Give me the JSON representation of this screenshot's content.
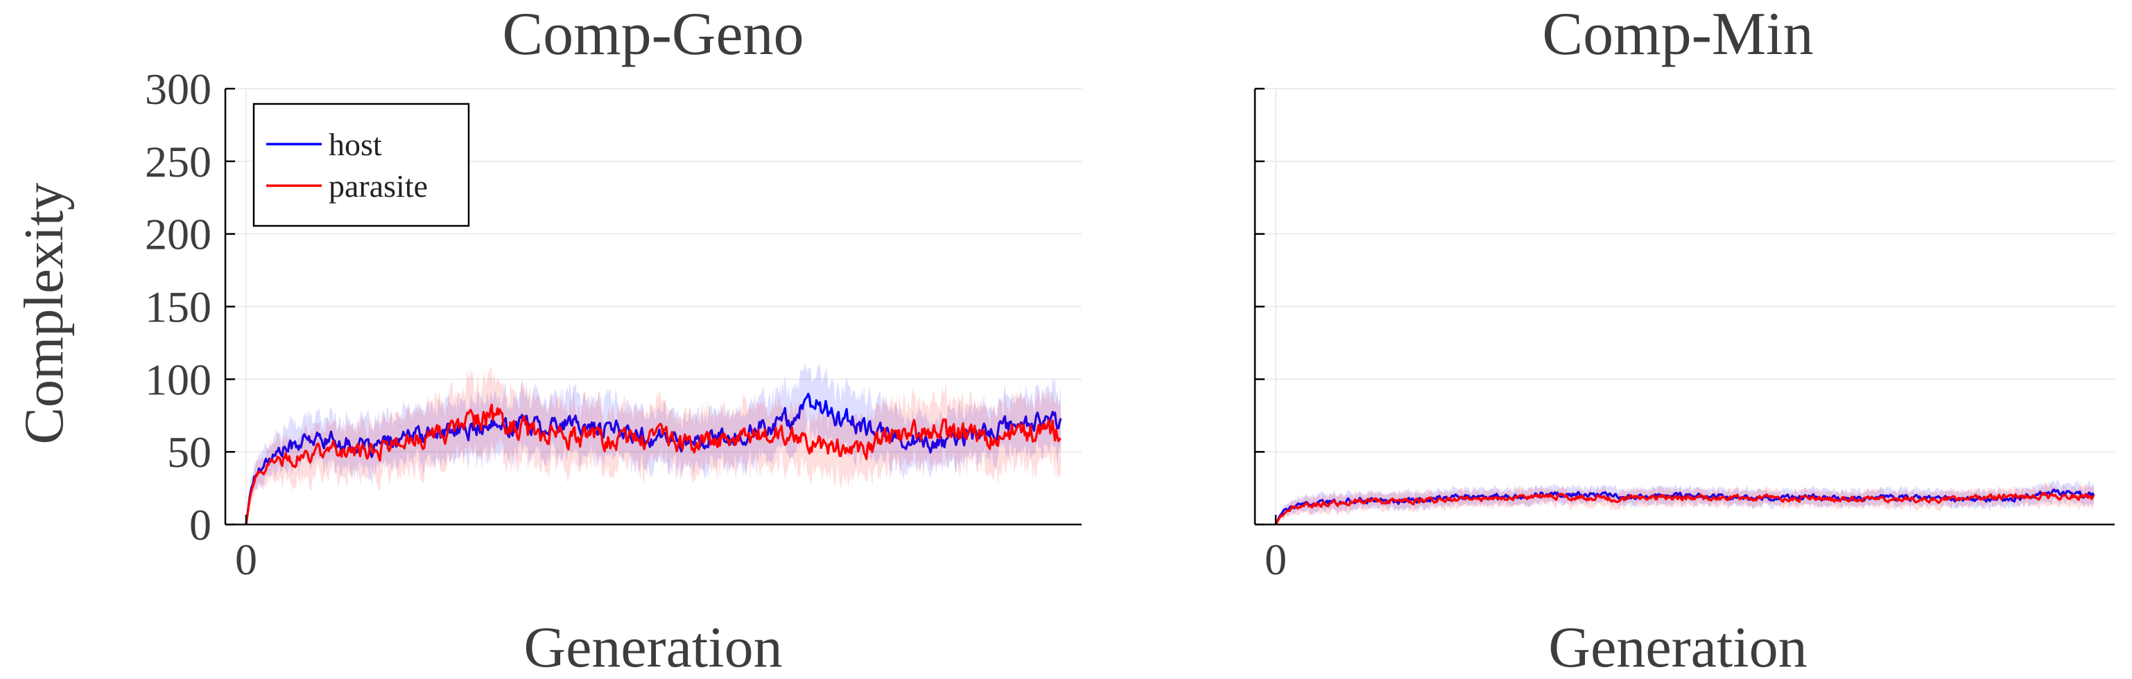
{
  "chart_data": [
    {
      "type": "line",
      "title": "Comp-Geno",
      "xlabel": "Generation",
      "ylabel": "Complexity",
      "xlim": [
        0,
        1000
      ],
      "ylim": [
        0,
        300
      ],
      "yticks": [
        0,
        50,
        100,
        150,
        200,
        250,
        300
      ],
      "xticks": [
        0
      ],
      "grid": true,
      "legend": "top-left",
      "series": [
        {
          "name": "host",
          "color": "#0000ff",
          "x": [
            0,
            5,
            10,
            20,
            40,
            60,
            80,
            100,
            150,
            200,
            250,
            300,
            350,
            400,
            450,
            500,
            550,
            600,
            650,
            700,
            750,
            800,
            850,
            900,
            950,
            1000
          ],
          "y": [
            0,
            22,
            32,
            42,
            50,
            55,
            58,
            59,
            52,
            60,
            64,
            66,
            70,
            68,
            66,
            60,
            57,
            60,
            70,
            82,
            68,
            60,
            55,
            62,
            70,
            72
          ],
          "band": [
            0,
            6,
            8,
            10,
            12,
            14,
            14,
            15,
            15,
            16,
            17,
            18,
            18,
            18,
            17,
            17,
            16,
            17,
            18,
            20,
            18,
            17,
            16,
            16,
            17,
            18
          ]
        },
        {
          "name": "parasite",
          "color": "#ff0000",
          "x": [
            0,
            5,
            10,
            20,
            40,
            60,
            80,
            100,
            150,
            200,
            250,
            300,
            350,
            400,
            450,
            500,
            550,
            600,
            650,
            700,
            750,
            800,
            850,
            900,
            950,
            1000
          ],
          "y": [
            0,
            20,
            30,
            38,
            44,
            46,
            48,
            50,
            50,
            58,
            64,
            75,
            62,
            60,
            58,
            60,
            55,
            60,
            62,
            56,
            52,
            60,
            65,
            60,
            63,
            65
          ],
          "band": [
            0,
            6,
            8,
            10,
            12,
            14,
            15,
            16,
            16,
            18,
            20,
            22,
            20,
            19,
            18,
            18,
            17,
            18,
            19,
            18,
            18,
            19,
            20,
            19,
            20,
            22
          ]
        }
      ]
    },
    {
      "type": "line",
      "title": "Comp-Min",
      "xlabel": "Generation",
      "ylabel": "",
      "xlim": [
        0,
        1000
      ],
      "ylim": [
        0,
        300
      ],
      "yticks": [
        0,
        50,
        100,
        150,
        200,
        250,
        300
      ],
      "xticks": [
        0
      ],
      "grid": true,
      "legend": "",
      "series": [
        {
          "name": "host",
          "color": "#0000ff",
          "x": [
            0,
            5,
            10,
            20,
            40,
            60,
            80,
            100,
            150,
            200,
            250,
            300,
            350,
            400,
            450,
            500,
            550,
            600,
            650,
            700,
            750,
            800,
            850,
            900,
            950,
            1000
          ],
          "y": [
            0,
            6,
            9,
            12,
            14,
            15,
            16,
            17,
            16,
            18,
            19,
            20,
            21,
            20,
            19,
            20,
            19,
            18,
            19,
            18,
            19,
            18,
            17,
            18,
            22,
            20
          ],
          "band": [
            0,
            2,
            3,
            4,
            5,
            5,
            5,
            5,
            5,
            5,
            5,
            5,
            5,
            5,
            5,
            5,
            5,
            5,
            5,
            5,
            5,
            5,
            5,
            5,
            6,
            6
          ]
        },
        {
          "name": "parasite",
          "color": "#ff0000",
          "x": [
            0,
            5,
            10,
            20,
            40,
            60,
            80,
            100,
            150,
            200,
            250,
            300,
            350,
            400,
            450,
            500,
            550,
            600,
            650,
            700,
            750,
            800,
            850,
            900,
            950,
            1000
          ],
          "y": [
            0,
            5,
            8,
            11,
            13,
            14,
            15,
            16,
            16,
            17,
            18,
            19,
            19,
            18,
            18,
            19,
            18,
            18,
            18,
            17,
            18,
            17,
            18,
            19,
            20,
            19
          ],
          "band": [
            0,
            2,
            3,
            4,
            5,
            5,
            5,
            5,
            5,
            5,
            5,
            5,
            5,
            5,
            5,
            5,
            5,
            5,
            5,
            5,
            5,
            5,
            5,
            5,
            6,
            6
          ]
        }
      ]
    }
  ]
}
